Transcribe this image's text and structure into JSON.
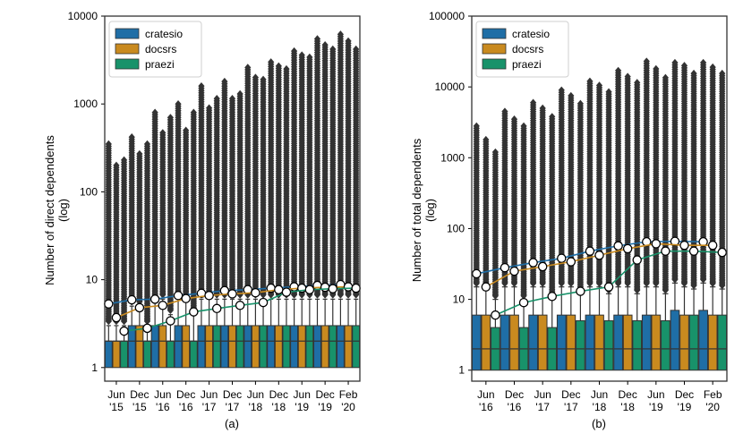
{
  "colors": {
    "cratesio": "#1f6ea6",
    "docsrs": "#c98a1f",
    "praezi": "#18926a",
    "outlier": "#333333"
  },
  "legend": [
    "cratesio",
    "docsrs",
    "praezi"
  ],
  "chart_data": [
    {
      "type": "box",
      "caption": "(a)",
      "ylabel_line1": "Number of direct  dependents",
      "ylabel_line2": "(log)",
      "yscale": "log",
      "ylim": [
        0.7,
        10000
      ],
      "yticks": [
        1,
        10,
        100,
        1000,
        10000
      ],
      "ytick_labels": [
        "1",
        "10",
        "100",
        "1000",
        "10000"
      ],
      "legend_position": "top-left",
      "categories": [
        [
          "Jun",
          "'15"
        ],
        [
          "Dec",
          "'15"
        ],
        [
          "Jun",
          "'16"
        ],
        [
          "Dec",
          "'16"
        ],
        [
          "Jun",
          "'17"
        ],
        [
          "Dec",
          "'17"
        ],
        [
          "Jun",
          "'18"
        ],
        [
          "Dec",
          "'18"
        ],
        [
          "Jun",
          "'19"
        ],
        [
          "Dec",
          "'19"
        ],
        [
          "Feb",
          "'20"
        ]
      ],
      "series": [
        {
          "name": "cratesio",
          "q1": [
            1,
            1,
            1,
            1,
            1,
            1,
            1,
            1,
            1,
            1,
            1
          ],
          "median": [
            2,
            2,
            2,
            2,
            2,
            2,
            2,
            2,
            2,
            2,
            2
          ],
          "q3": [
            2,
            3,
            3,
            3,
            3,
            3,
            3,
            3,
            3,
            3,
            3
          ],
          "whisker": [
            3,
            5,
            6,
            6,
            6,
            6,
            6,
            6,
            6,
            6,
            6
          ],
          "outlier_max": [
            350,
            420,
            800,
            1000,
            1600,
            1800,
            2600,
            3000,
            4000,
            5500,
            6200
          ],
          "mean": [
            5.3,
            5.9,
            6.0,
            6.6,
            7.0,
            7.5,
            7.7,
            8.0,
            8.3,
            8.6,
            8.8
          ]
        },
        {
          "name": "docsrs",
          "q1": [
            1,
            1,
            1,
            1,
            1,
            1,
            1,
            1,
            1,
            1,
            1
          ],
          "median": [
            2,
            2,
            2,
            2,
            2,
            2,
            2,
            2,
            2,
            2,
            2
          ],
          "q3": [
            2,
            3,
            3,
            3,
            3,
            3,
            3,
            3,
            3,
            3,
            3
          ],
          "whisker": [
            3,
            5,
            6,
            6,
            6,
            6,
            6,
            6,
            6,
            6,
            6
          ],
          "outlier_max": [
            200,
            270,
            470,
            500,
            900,
            1150,
            2000,
            2700,
            3600,
            4700,
            5200
          ],
          "mean": [
            3.7,
            4.8,
            5.1,
            6.1,
            6.6,
            6.9,
            7.1,
            7.7,
            8.0,
            8.2,
            8.3
          ]
        },
        {
          "name": "praezi",
          "q1": [
            1,
            1,
            1,
            1,
            1,
            1,
            1,
            1,
            1,
            1,
            1
          ],
          "median": [
            2,
            2,
            2,
            2,
            2,
            2,
            2,
            2,
            2,
            2,
            2
          ],
          "q3": [
            2,
            2,
            2,
            2,
            3,
            3,
            3,
            3,
            3,
            3,
            3
          ],
          "whisker": [
            3,
            3,
            4,
            4,
            6,
            6,
            6,
            6,
            6,
            6,
            6
          ],
          "outlier_max": [
            230,
            350,
            700,
            800,
            1150,
            1300,
            1900,
            2500,
            3400,
            4200,
            4200
          ],
          "mean": [
            2.6,
            2.8,
            3.4,
            4.3,
            4.7,
            5.1,
            5.5,
            7.2,
            7.7,
            7.9,
            8.0
          ]
        }
      ]
    },
    {
      "type": "box",
      "caption": "(b)",
      "ylabel_line1": "Number of total dependents",
      "ylabel_line2": "(log)",
      "yscale": "log",
      "ylim": [
        0.7,
        100000
      ],
      "yticks": [
        1,
        10,
        100,
        1000,
        10000,
        100000
      ],
      "ytick_labels": [
        "1",
        "10",
        "100",
        "1000",
        "10000",
        "100000"
      ],
      "legend_position": "top-left",
      "categories": [
        [
          "Jun",
          "'16"
        ],
        [
          "Dec",
          "'16"
        ],
        [
          "Jun",
          "'17"
        ],
        [
          "Dec",
          "'17"
        ],
        [
          "Jun",
          "'18"
        ],
        [
          "Dec",
          "'18"
        ],
        [
          "Jun",
          "'19"
        ],
        [
          "Dec",
          "'19"
        ],
        [
          "Feb",
          "'20"
        ]
      ],
      "series": [
        {
          "name": "cratesio",
          "q1": [
            1,
            1,
            1,
            1,
            1,
            1,
            1,
            1,
            1
          ],
          "median": [
            2,
            2,
            2,
            2,
            2,
            2,
            2,
            2,
            2
          ],
          "q3": [
            6,
            6,
            6,
            6,
            6,
            6,
            6,
            7,
            7
          ],
          "whisker": [
            15,
            15,
            15,
            15,
            15,
            15,
            15,
            17,
            17
          ],
          "outlier_max": [
            2800,
            4500,
            6000,
            9000,
            12000,
            17000,
            23000,
            22000,
            22000
          ],
          "mean": [
            23,
            28,
            33,
            38,
            48,
            57,
            65,
            66,
            65
          ]
        },
        {
          "name": "docsrs",
          "q1": [
            1,
            1,
            1,
            1,
            1,
            1,
            1,
            1,
            1
          ],
          "median": [
            2,
            2,
            2,
            2,
            2,
            2,
            2,
            2,
            2
          ],
          "q3": [
            6,
            6,
            6,
            6,
            6,
            6,
            6,
            6,
            6
          ],
          "whisker": [
            15,
            15,
            15,
            15,
            15,
            15,
            15,
            15,
            15
          ],
          "outlier_max": [
            1800,
            3500,
            5000,
            7500,
            10500,
            14000,
            18000,
            20000,
            19000
          ],
          "mean": [
            15,
            25,
            29,
            34,
            42,
            52,
            61,
            58,
            58
          ]
        },
        {
          "name": "praezi",
          "q1": [
            1,
            1,
            1,
            1,
            1,
            1,
            1,
            1,
            1
          ],
          "median": [
            2,
            2,
            2,
            2,
            2,
            2,
            2,
            2,
            2
          ],
          "q3": [
            4,
            4,
            4,
            5,
            5,
            5,
            5,
            6,
            6
          ],
          "whisker": [
            10,
            10,
            10,
            12,
            12,
            12,
            12,
            14,
            14
          ],
          "outlier_max": [
            1200,
            2800,
            3800,
            5800,
            8500,
            11500,
            13500,
            15500,
            15500
          ],
          "mean": [
            6,
            9,
            11,
            13,
            15,
            36,
            48,
            48,
            46
          ]
        }
      ]
    }
  ]
}
